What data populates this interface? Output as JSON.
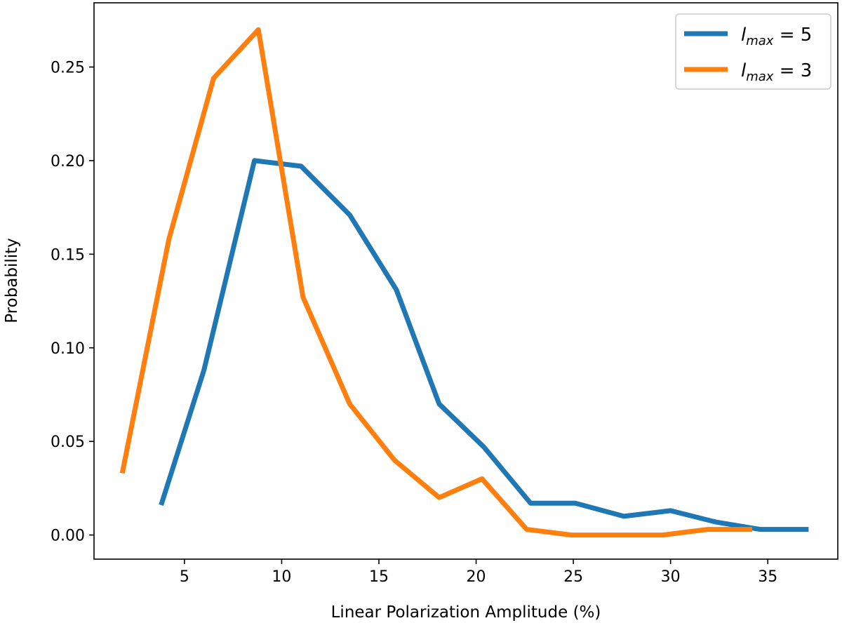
{
  "chart_data": {
    "type": "line",
    "xlabel": "Linear Polarization Amplitude (%)",
    "ylabel": "Probability",
    "xlim": [
      0.35,
      38.6
    ],
    "ylim": [
      -0.0129,
      0.2843
    ],
    "xticks": [
      "5",
      "10",
      "15",
      "20",
      "25",
      "30",
      "35"
    ],
    "xtick_values": [
      5,
      10,
      15,
      20,
      25,
      30,
      35
    ],
    "yticks": [
      "0.00",
      "0.05",
      "0.10",
      "0.15",
      "0.20",
      "0.25"
    ],
    "ytick_values": [
      0,
      0.05,
      0.1,
      0.15,
      0.2,
      0.25
    ],
    "grid": false,
    "legend_position": "upper right",
    "series": [
      {
        "name": "l_max = 5",
        "legend_main": "l",
        "legend_sub": "max",
        "legend_rest": " = 5",
        "color": "#1f77b4",
        "x": [
          3.8,
          6.0,
          8.6,
          11.0,
          13.5,
          15.9,
          18.1,
          20.4,
          22.8,
          25.1,
          27.6,
          30.0,
          32.3,
          34.6,
          37.1
        ],
        "y": [
          0.016,
          0.088,
          0.2,
          0.197,
          0.171,
          0.131,
          0.07,
          0.047,
          0.017,
          0.017,
          0.01,
          0.013,
          0.007,
          0.003,
          0.003
        ]
      },
      {
        "name": "l_max = 3",
        "legend_main": "l",
        "legend_sub": "max",
        "legend_rest": " = 3",
        "color": "#ff7f0e",
        "x": [
          1.8,
          4.2,
          6.5,
          8.8,
          11.1,
          13.5,
          15.8,
          18.1,
          20.3,
          22.6,
          24.9,
          27.3,
          29.6,
          31.9,
          34.2
        ],
        "y": [
          0.033,
          0.158,
          0.244,
          0.27,
          0.127,
          0.07,
          0.04,
          0.02,
          0.03,
          0.003,
          0.0,
          0.0,
          0.0,
          0.003,
          0.003
        ]
      }
    ]
  }
}
